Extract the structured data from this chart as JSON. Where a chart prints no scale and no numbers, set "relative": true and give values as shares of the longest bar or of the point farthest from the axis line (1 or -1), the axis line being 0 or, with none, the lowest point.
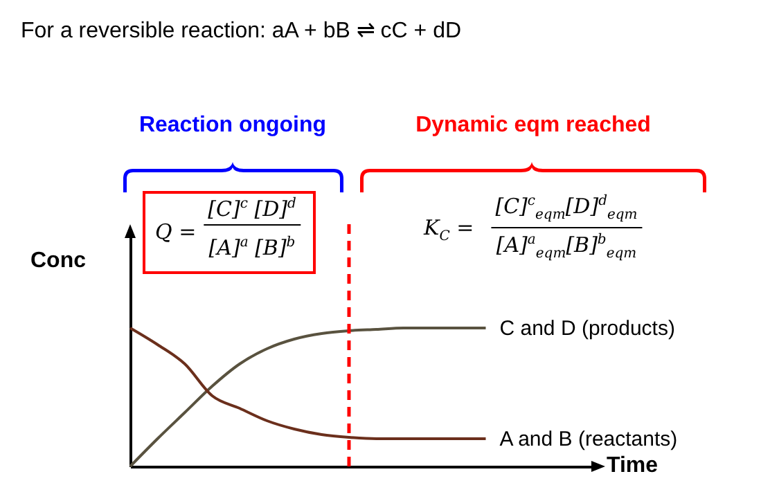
{
  "chart_data": {
    "type": "line",
    "title": "For a reversible reaction:  aA + bB ⇌ cC + dD",
    "xlabel": "Time",
    "ylabel": "Conc",
    "relative": true,
    "tick_labels": false,
    "categories": [
      null,
      null,
      null,
      null,
      null,
      null,
      null,
      null,
      null,
      null,
      null,
      null,
      null,
      null
    ],
    "series": [
      {
        "name": "C and D (products)",
        "color": "#59523f",
        "values": [
          0,
          0.2,
          0.39,
          0.58,
          0.74,
          0.85,
          0.92,
          0.96,
          0.98,
          0.99,
          1,
          1,
          1,
          1
        ]
      },
      {
        "name": "A and B (reactants)",
        "color": "#6b2f1c",
        "values": [
          1,
          0.88,
          0.74,
          0.51,
          0.42,
          0.33,
          0.27,
          0.23,
          0.21,
          0.2,
          0.2,
          0.2,
          0.2,
          0.2
        ]
      }
    ],
    "annotations": [
      "Reaction ongoing",
      "Dynamic eqm reached",
      "Q =",
      "[C]$^{c}$ [D]$^{d}$",
      "[A]$^{a}$ [B]$^{b}$",
      "K$_{C}$ =",
      "[C]$^{c}$$_{eqm}$[D]$^{d}$$_{eqm}$",
      "[A]$^{a}$$_{eqm}$[B]$^{b}$$_{eqm}$"
    ]
  }
}
